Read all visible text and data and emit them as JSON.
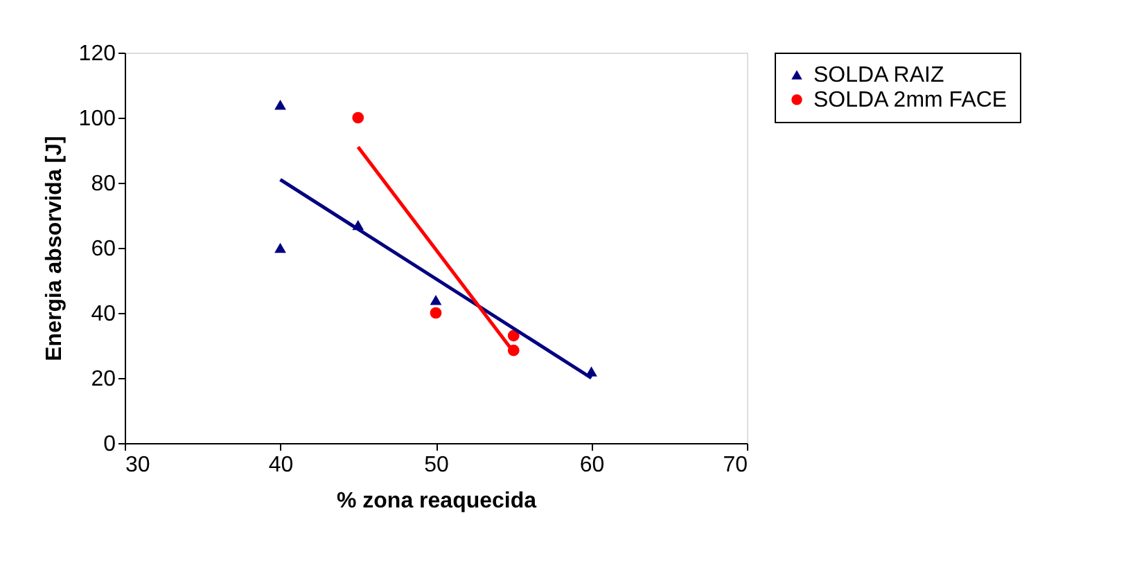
{
  "chart_data": {
    "type": "scatter",
    "xlabel": "% zona reaquecida",
    "ylabel": "Energia absorvida [J]",
    "xlim": [
      30,
      70
    ],
    "xticks": [
      30,
      40,
      50,
      60,
      70
    ],
    "ylim": [
      0,
      120
    ],
    "yticks": [
      0,
      20,
      40,
      60,
      80,
      100,
      120
    ],
    "grid": false,
    "legend": "right",
    "series": [
      {
        "name": "SOLDA RAIZ",
        "color": "#000080",
        "marker": "triangle",
        "x": [
          40,
          40,
          45,
          50,
          60
        ],
        "values": [
          104,
          60,
          67,
          44,
          22
        ]
      },
      {
        "name": "SOLDA 2mm FACE",
        "color": "#ff0000",
        "marker": "circle",
        "x": [
          45,
          50,
          55,
          55
        ],
        "values": [
          100,
          40,
          33,
          28.5
        ]
      },
      {
        "type": "line",
        "color": "#000080",
        "x": [
          40,
          60
        ],
        "values": [
          81,
          20
        ]
      },
      {
        "type": "line",
        "color": "#ff0000",
        "x": [
          45,
          55
        ],
        "values": [
          91,
          28
        ]
      }
    ]
  }
}
